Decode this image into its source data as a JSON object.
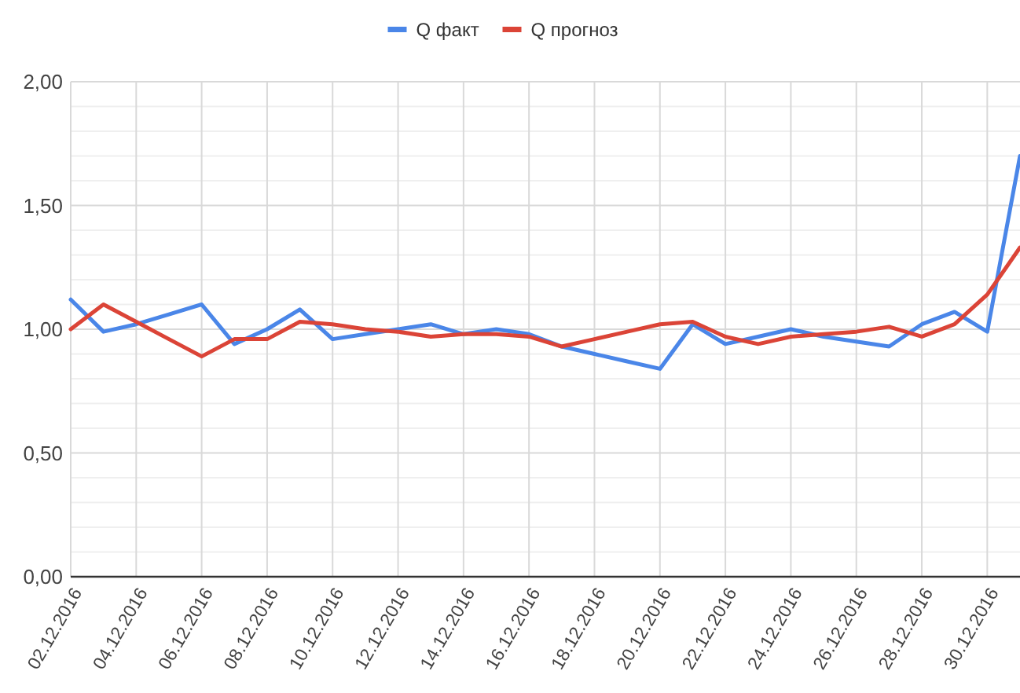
{
  "chart_data": {
    "type": "line",
    "x": [
      "2016-12-02",
      "2016-12-03",
      "2016-12-04",
      "2016-12-05",
      "2016-12-06",
      "2016-12-07",
      "2016-12-08",
      "2016-12-09",
      "2016-12-10",
      "2016-12-11",
      "2016-12-12",
      "2016-12-13",
      "2016-12-14",
      "2016-12-15",
      "2016-12-16",
      "2016-12-17",
      "2016-12-18",
      "2016-12-19",
      "2016-12-20",
      "2016-12-21",
      "2016-12-22",
      "2016-12-23",
      "2016-12-24",
      "2016-12-25",
      "2016-12-26",
      "2016-12-27",
      "2016-12-28",
      "2016-12-29",
      "2016-12-30",
      "2016-12-31"
    ],
    "series": [
      {
        "name": "Q факт",
        "color": "#4a86e8",
        "values": [
          1.12,
          0.99,
          1.02,
          1.06,
          1.1,
          0.94,
          1.0,
          1.08,
          0.96,
          0.98,
          1.0,
          1.02,
          0.98,
          1.0,
          0.98,
          0.93,
          0.9,
          0.87,
          0.84,
          1.02,
          0.94,
          0.97,
          1.0,
          0.97,
          0.95,
          0.93,
          1.02,
          1.07,
          0.99,
          1.7
        ]
      },
      {
        "name": "Q прогноз",
        "color": "#db4437",
        "values": [
          1.0,
          1.1,
          1.03,
          0.96,
          0.89,
          0.96,
          0.96,
          1.03,
          1.02,
          1.0,
          0.99,
          0.97,
          0.98,
          0.98,
          0.97,
          0.93,
          0.96,
          0.99,
          1.02,
          1.03,
          0.97,
          0.94,
          0.97,
          0.98,
          0.99,
          1.01,
          0.97,
          1.02,
          1.14,
          1.33
        ]
      }
    ],
    "xlim": [
      "2016-12-02",
      "2016-12-31"
    ],
    "xticks": [
      {
        "value": "2016-12-02",
        "label": "02.12.2016"
      },
      {
        "value": "2016-12-04",
        "label": "04.12.2016"
      },
      {
        "value": "2016-12-06",
        "label": "06.12.2016"
      },
      {
        "value": "2016-12-08",
        "label": "08.12.2016"
      },
      {
        "value": "2016-12-10",
        "label": "10.12.2016"
      },
      {
        "value": "2016-12-12",
        "label": "12.12.2016"
      },
      {
        "value": "2016-12-14",
        "label": "14.12.2016"
      },
      {
        "value": "2016-12-16",
        "label": "16.12.2016"
      },
      {
        "value": "2016-12-18",
        "label": "18.12.2016"
      },
      {
        "value": "2016-12-20",
        "label": "20.12.2016"
      },
      {
        "value": "2016-12-22",
        "label": "22.12.2016"
      },
      {
        "value": "2016-12-24",
        "label": "24.12.2016"
      },
      {
        "value": "2016-12-26",
        "label": "26.12.2016"
      },
      {
        "value": "2016-12-28",
        "label": "28.12.2016"
      },
      {
        "value": "2016-12-30",
        "label": "30.12.2016"
      }
    ],
    "ylim": [
      0,
      2
    ],
    "yticks": [
      {
        "value": 0,
        "label": "0,00"
      },
      {
        "value": 0.1,
        "label": null
      },
      {
        "value": 0.2,
        "label": null
      },
      {
        "value": 0.3,
        "label": null
      },
      {
        "value": 0.4,
        "label": null
      },
      {
        "value": 0.5,
        "label": "0,50"
      },
      {
        "value": 0.6,
        "label": null
      },
      {
        "value": 0.7,
        "label": null
      },
      {
        "value": 0.8,
        "label": null
      },
      {
        "value": 0.9,
        "label": null
      },
      {
        "value": 1,
        "label": "1,00"
      },
      {
        "value": 1.1,
        "label": null
      },
      {
        "value": 1.2,
        "label": null
      },
      {
        "value": 1.3,
        "label": null
      },
      {
        "value": 1.4,
        "label": null
      },
      {
        "value": 1.5,
        "label": "1,50"
      },
      {
        "value": 1.6,
        "label": null
      },
      {
        "value": 1.7,
        "label": null
      },
      {
        "value": 1.8,
        "label": null
      },
      {
        "value": 1.9,
        "label": null
      },
      {
        "value": 2,
        "label": "2,00"
      }
    ],
    "grid": true,
    "legend": "top",
    "marker": "none",
    "line_style": "solid"
  }
}
